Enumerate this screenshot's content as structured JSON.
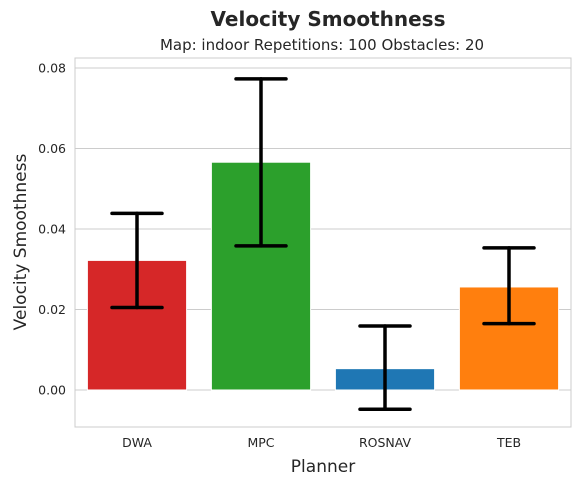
{
  "chart_data": {
    "type": "bar",
    "title": "Velocity Smoothness",
    "subtitle": "Map: indoor Repetitions: 100 Obstacles: 20",
    "xlabel": "Planner",
    "ylabel": "Velocity Smoothness",
    "categories": [
      "DWA",
      "MPC",
      "ROSNAV",
      "TEB"
    ],
    "values": [
      0.0322,
      0.0566,
      0.0053,
      0.0256
    ],
    "error_low": [
      0.0205,
      0.0358,
      -0.0048,
      0.0165
    ],
    "error_high": [
      0.0439,
      0.0773,
      0.0159,
      0.0353
    ],
    "colors": [
      "#d62728",
      "#2ca02c",
      "#1f77b4",
      "#ff7f0e"
    ],
    "ylim": [
      -0.0092,
      0.0825
    ],
    "yticks": [
      0.0,
      0.02,
      0.04,
      0.06,
      0.08
    ],
    "ytick_labels": [
      "0.00",
      "0.02",
      "0.04",
      "0.06",
      "0.08"
    ],
    "grid": "horizontal"
  }
}
